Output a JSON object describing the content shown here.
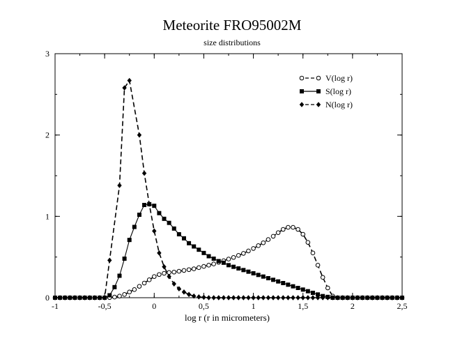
{
  "chart_data": {
    "type": "line",
    "title": "Meteorite FRO95002M",
    "subtitle": "size distributions",
    "xlabel": "log r (r in micrometers)",
    "ylabel": "",
    "xlim": [
      -1,
      2.5
    ],
    "ylim": [
      0,
      3
    ],
    "grid": false,
    "legend_position": "top-right",
    "x_ticks": [
      {
        "value": -1,
        "label": "-1"
      },
      {
        "value": -0.5,
        "label": "-0,5"
      },
      {
        "value": 0,
        "label": "0"
      },
      {
        "value": 0.5,
        "label": "0,5"
      },
      {
        "value": 1,
        "label": "1"
      },
      {
        "value": 1.5,
        "label": "1,5"
      },
      {
        "value": 2,
        "label": "2"
      },
      {
        "value": 2.5,
        "label": "2,5"
      }
    ],
    "y_ticks": [
      {
        "value": 0,
        "label": "0"
      },
      {
        "value": 1,
        "label": "1"
      },
      {
        "value": 2,
        "label": "2"
      },
      {
        "value": 3,
        "label": "3"
      }
    ],
    "series": [
      {
        "name": "V(log r)",
        "marker": "open-circle",
        "line_style": "dash",
        "points": [
          [
            -1.0,
            0.0
          ],
          [
            -0.95,
            0.0
          ],
          [
            -0.9,
            0.0
          ],
          [
            -0.85,
            0.0
          ],
          [
            -0.8,
            0.0
          ],
          [
            -0.75,
            0.0
          ],
          [
            -0.7,
            0.0
          ],
          [
            -0.65,
            0.0
          ],
          [
            -0.6,
            0.0
          ],
          [
            -0.55,
            0.0
          ],
          [
            -0.5,
            0.0
          ],
          [
            -0.45,
            0.002
          ],
          [
            -0.4,
            0.008
          ],
          [
            -0.35,
            0.02
          ],
          [
            -0.3,
            0.04
          ],
          [
            -0.25,
            0.07
          ],
          [
            -0.2,
            0.1
          ],
          [
            -0.15,
            0.14
          ],
          [
            -0.1,
            0.18
          ],
          [
            -0.05,
            0.22
          ],
          [
            0.0,
            0.26
          ],
          [
            0.05,
            0.285
          ],
          [
            0.1,
            0.3
          ],
          [
            0.15,
            0.31
          ],
          [
            0.2,
            0.315
          ],
          [
            0.25,
            0.325
          ],
          [
            0.3,
            0.335
          ],
          [
            0.35,
            0.345
          ],
          [
            0.4,
            0.355
          ],
          [
            0.45,
            0.37
          ],
          [
            0.5,
            0.385
          ],
          [
            0.55,
            0.4
          ],
          [
            0.6,
            0.415
          ],
          [
            0.65,
            0.435
          ],
          [
            0.7,
            0.455
          ],
          [
            0.75,
            0.475
          ],
          [
            0.8,
            0.495
          ],
          [
            0.85,
            0.52
          ],
          [
            0.9,
            0.545
          ],
          [
            0.95,
            0.575
          ],
          [
            1.0,
            0.605
          ],
          [
            1.05,
            0.64
          ],
          [
            1.1,
            0.675
          ],
          [
            1.15,
            0.715
          ],
          [
            1.2,
            0.755
          ],
          [
            1.25,
            0.8
          ],
          [
            1.3,
            0.84
          ],
          [
            1.35,
            0.865
          ],
          [
            1.4,
            0.865
          ],
          [
            1.45,
            0.84
          ],
          [
            1.5,
            0.78
          ],
          [
            1.55,
            0.68
          ],
          [
            1.6,
            0.55
          ],
          [
            1.65,
            0.4
          ],
          [
            1.7,
            0.25
          ],
          [
            1.75,
            0.12
          ],
          [
            1.8,
            0.02
          ],
          [
            1.85,
            0.0
          ],
          [
            1.9,
            0.0
          ],
          [
            1.95,
            0.0
          ],
          [
            2.0,
            0.0
          ],
          [
            2.05,
            0.0
          ],
          [
            2.1,
            0.0
          ],
          [
            2.15,
            0.0
          ],
          [
            2.2,
            0.0
          ],
          [
            2.25,
            0.0
          ],
          [
            2.3,
            0.0
          ],
          [
            2.35,
            0.0
          ],
          [
            2.4,
            0.0
          ],
          [
            2.45,
            0.0
          ],
          [
            2.5,
            0.0
          ]
        ]
      },
      {
        "name": "S(log r)",
        "marker": "filled-square",
        "line_style": "solid",
        "points": [
          [
            -1.0,
            0.0
          ],
          [
            -0.95,
            0.0
          ],
          [
            -0.9,
            0.0
          ],
          [
            -0.85,
            0.0
          ],
          [
            -0.8,
            0.0
          ],
          [
            -0.75,
            0.0
          ],
          [
            -0.7,
            0.0
          ],
          [
            -0.65,
            0.0
          ],
          [
            -0.6,
            0.0
          ],
          [
            -0.55,
            0.0
          ],
          [
            -0.5,
            0.0
          ],
          [
            -0.45,
            0.03
          ],
          [
            -0.4,
            0.13
          ],
          [
            -0.35,
            0.27
          ],
          [
            -0.3,
            0.48
          ],
          [
            -0.25,
            0.71
          ],
          [
            -0.2,
            0.87
          ],
          [
            -0.15,
            1.02
          ],
          [
            -0.1,
            1.14
          ],
          [
            -0.05,
            1.15
          ],
          [
            0.0,
            1.13
          ],
          [
            0.05,
            1.04
          ],
          [
            0.1,
            0.97
          ],
          [
            0.15,
            0.92
          ],
          [
            0.2,
            0.85
          ],
          [
            0.25,
            0.78
          ],
          [
            0.3,
            0.73
          ],
          [
            0.35,
            0.67
          ],
          [
            0.4,
            0.63
          ],
          [
            0.45,
            0.59
          ],
          [
            0.5,
            0.55
          ],
          [
            0.55,
            0.51
          ],
          [
            0.6,
            0.48
          ],
          [
            0.65,
            0.45
          ],
          [
            0.7,
            0.43
          ],
          [
            0.75,
            0.4
          ],
          [
            0.8,
            0.38
          ],
          [
            0.85,
            0.36
          ],
          [
            0.9,
            0.34
          ],
          [
            0.95,
            0.32
          ],
          [
            1.0,
            0.3
          ],
          [
            1.05,
            0.28
          ],
          [
            1.1,
            0.26
          ],
          [
            1.15,
            0.24
          ],
          [
            1.2,
            0.22
          ],
          [
            1.25,
            0.2
          ],
          [
            1.3,
            0.18
          ],
          [
            1.35,
            0.16
          ],
          [
            1.4,
            0.14
          ],
          [
            1.45,
            0.12
          ],
          [
            1.5,
            0.1
          ],
          [
            1.55,
            0.08
          ],
          [
            1.6,
            0.06
          ],
          [
            1.65,
            0.04
          ],
          [
            1.7,
            0.02
          ],
          [
            1.75,
            0.01
          ],
          [
            1.8,
            0.0
          ],
          [
            1.85,
            0.0
          ],
          [
            1.9,
            0.0
          ],
          [
            1.95,
            0.0
          ],
          [
            2.0,
            0.0
          ],
          [
            2.05,
            0.0
          ],
          [
            2.1,
            0.0
          ],
          [
            2.15,
            0.0
          ],
          [
            2.2,
            0.0
          ],
          [
            2.25,
            0.0
          ],
          [
            2.3,
            0.0
          ],
          [
            2.35,
            0.0
          ],
          [
            2.4,
            0.0
          ],
          [
            2.45,
            0.0
          ],
          [
            2.5,
            0.0
          ]
        ]
      },
      {
        "name": "N(log r)",
        "marker": "filled-diamond",
        "line_style": "dash",
        "points": [
          [
            -1.0,
            0.0
          ],
          [
            -0.95,
            0.0
          ],
          [
            -0.9,
            0.0
          ],
          [
            -0.85,
            0.0
          ],
          [
            -0.8,
            0.0
          ],
          [
            -0.75,
            0.0
          ],
          [
            -0.7,
            0.0
          ],
          [
            -0.65,
            0.0
          ],
          [
            -0.6,
            0.0
          ],
          [
            -0.55,
            0.0
          ],
          [
            -0.5,
            0.0
          ],
          [
            -0.45,
            0.46
          ],
          [
            -0.35,
            1.38
          ],
          [
            -0.3,
            2.58
          ],
          [
            -0.25,
            2.67
          ],
          [
            -0.15,
            2.0
          ],
          [
            -0.1,
            1.53
          ],
          [
            -0.05,
            1.15
          ],
          [
            0.0,
            0.82
          ],
          [
            0.05,
            0.55
          ],
          [
            0.1,
            0.38
          ],
          [
            0.15,
            0.26
          ],
          [
            0.2,
            0.17
          ],
          [
            0.25,
            0.11
          ],
          [
            0.3,
            0.07
          ],
          [
            0.35,
            0.04
          ],
          [
            0.4,
            0.02
          ],
          [
            0.45,
            0.01
          ],
          [
            0.5,
            0.005
          ],
          [
            0.55,
            0.0
          ],
          [
            0.6,
            0.0
          ],
          [
            0.65,
            0.0
          ],
          [
            0.7,
            0.0
          ],
          [
            0.75,
            0.0
          ],
          [
            0.8,
            0.0
          ],
          [
            0.85,
            0.0
          ],
          [
            0.9,
            0.0
          ],
          [
            0.95,
            0.0
          ],
          [
            1.0,
            0.0
          ],
          [
            1.05,
            0.0
          ],
          [
            1.1,
            0.0
          ],
          [
            1.15,
            0.0
          ],
          [
            1.2,
            0.0
          ],
          [
            1.25,
            0.0
          ],
          [
            1.3,
            0.0
          ],
          [
            1.35,
            0.0
          ],
          [
            1.4,
            0.0
          ],
          [
            1.45,
            0.0
          ],
          [
            1.5,
            0.0
          ],
          [
            1.55,
            0.0
          ],
          [
            1.6,
            0.0
          ],
          [
            1.65,
            0.0
          ],
          [
            1.7,
            0.0
          ],
          [
            1.75,
            0.0
          ],
          [
            1.8,
            0.0
          ],
          [
            1.85,
            0.0
          ],
          [
            1.9,
            0.0
          ],
          [
            1.95,
            0.0
          ],
          [
            2.0,
            0.0
          ],
          [
            2.05,
            0.0
          ],
          [
            2.1,
            0.0
          ],
          [
            2.15,
            0.0
          ],
          [
            2.2,
            0.0
          ],
          [
            2.25,
            0.0
          ],
          [
            2.3,
            0.0
          ],
          [
            2.35,
            0.0
          ],
          [
            2.4,
            0.0
          ],
          [
            2.45,
            0.0
          ],
          [
            2.5,
            0.0
          ]
        ]
      }
    ]
  }
}
